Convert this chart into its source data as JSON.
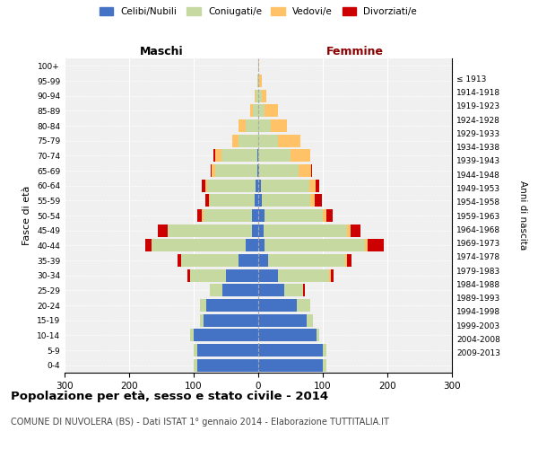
{
  "age_groups": [
    "0-4",
    "5-9",
    "10-14",
    "15-19",
    "20-24",
    "25-29",
    "30-34",
    "35-39",
    "40-44",
    "45-49",
    "50-54",
    "55-59",
    "60-64",
    "65-69",
    "70-74",
    "75-79",
    "80-84",
    "85-89",
    "90-94",
    "95-99",
    "100+"
  ],
  "birth_years": [
    "2009-2013",
    "2004-2008",
    "1999-2003",
    "1994-1998",
    "1989-1993",
    "1984-1988",
    "1979-1983",
    "1974-1978",
    "1969-1973",
    "1964-1968",
    "1959-1963",
    "1954-1958",
    "1949-1953",
    "1944-1948",
    "1939-1943",
    "1934-1938",
    "1929-1933",
    "1924-1928",
    "1919-1923",
    "1914-1918",
    "≤ 1913"
  ],
  "maschi": {
    "celibi": [
      95,
      95,
      100,
      85,
      80,
      55,
      50,
      30,
      20,
      10,
      10,
      5,
      4,
      2,
      2,
      0,
      0,
      0,
      0,
      0,
      0
    ],
    "coniugati": [
      5,
      5,
      5,
      5,
      10,
      20,
      55,
      90,
      145,
      130,
      75,
      70,
      75,
      65,
      55,
      30,
      20,
      8,
      4,
      2,
      0
    ],
    "vedovi": [
      0,
      0,
      0,
      0,
      0,
      0,
      0,
      0,
      0,
      0,
      2,
      2,
      3,
      5,
      10,
      10,
      10,
      5,
      2,
      0,
      0
    ],
    "divorziati": [
      0,
      0,
      0,
      0,
      0,
      0,
      5,
      5,
      10,
      15,
      8,
      5,
      5,
      2,
      2,
      0,
      0,
      0,
      0,
      0,
      0
    ]
  },
  "femmine": {
    "nubili": [
      100,
      100,
      90,
      75,
      60,
      40,
      30,
      15,
      10,
      8,
      10,
      5,
      4,
      2,
      0,
      0,
      0,
      0,
      0,
      0,
      0
    ],
    "coniugate": [
      5,
      5,
      5,
      10,
      20,
      30,
      80,
      120,
      155,
      130,
      90,
      75,
      75,
      60,
      50,
      30,
      20,
      10,
      5,
      2,
      0
    ],
    "vedove": [
      0,
      0,
      0,
      0,
      0,
      0,
      2,
      2,
      5,
      5,
      5,
      8,
      10,
      20,
      30,
      35,
      25,
      20,
      8,
      3,
      1
    ],
    "divorziate": [
      0,
      0,
      0,
      0,
      0,
      2,
      5,
      8,
      25,
      15,
      10,
      10,
      5,
      2,
      0,
      0,
      0,
      0,
      0,
      0,
      0
    ]
  },
  "colors": {
    "celibi": "#4472c4",
    "coniugati": "#c5d9a0",
    "vedovi": "#ffc266",
    "divorziati": "#cc0000"
  },
  "xlim": 300,
  "title": "Popolazione per età, sesso e stato civile - 2014",
  "subtitle": "COMUNE DI NUVOLERA (BS) - Dati ISTAT 1° gennaio 2014 - Elaborazione TUTTITALIA.IT",
  "ylabel": "Fasce di età",
  "ylabel_right": "Anni di nascita",
  "xlabel_left": "Maschi",
  "xlabel_right": "Femmine",
  "legend_labels": [
    "Celibi/Nubili",
    "Coniugati/e",
    "Vedovi/e",
    "Divorziati/e"
  ],
  "background_color": "#ffffff",
  "plot_bg": "#f0f0f0",
  "bar_height": 0.85
}
